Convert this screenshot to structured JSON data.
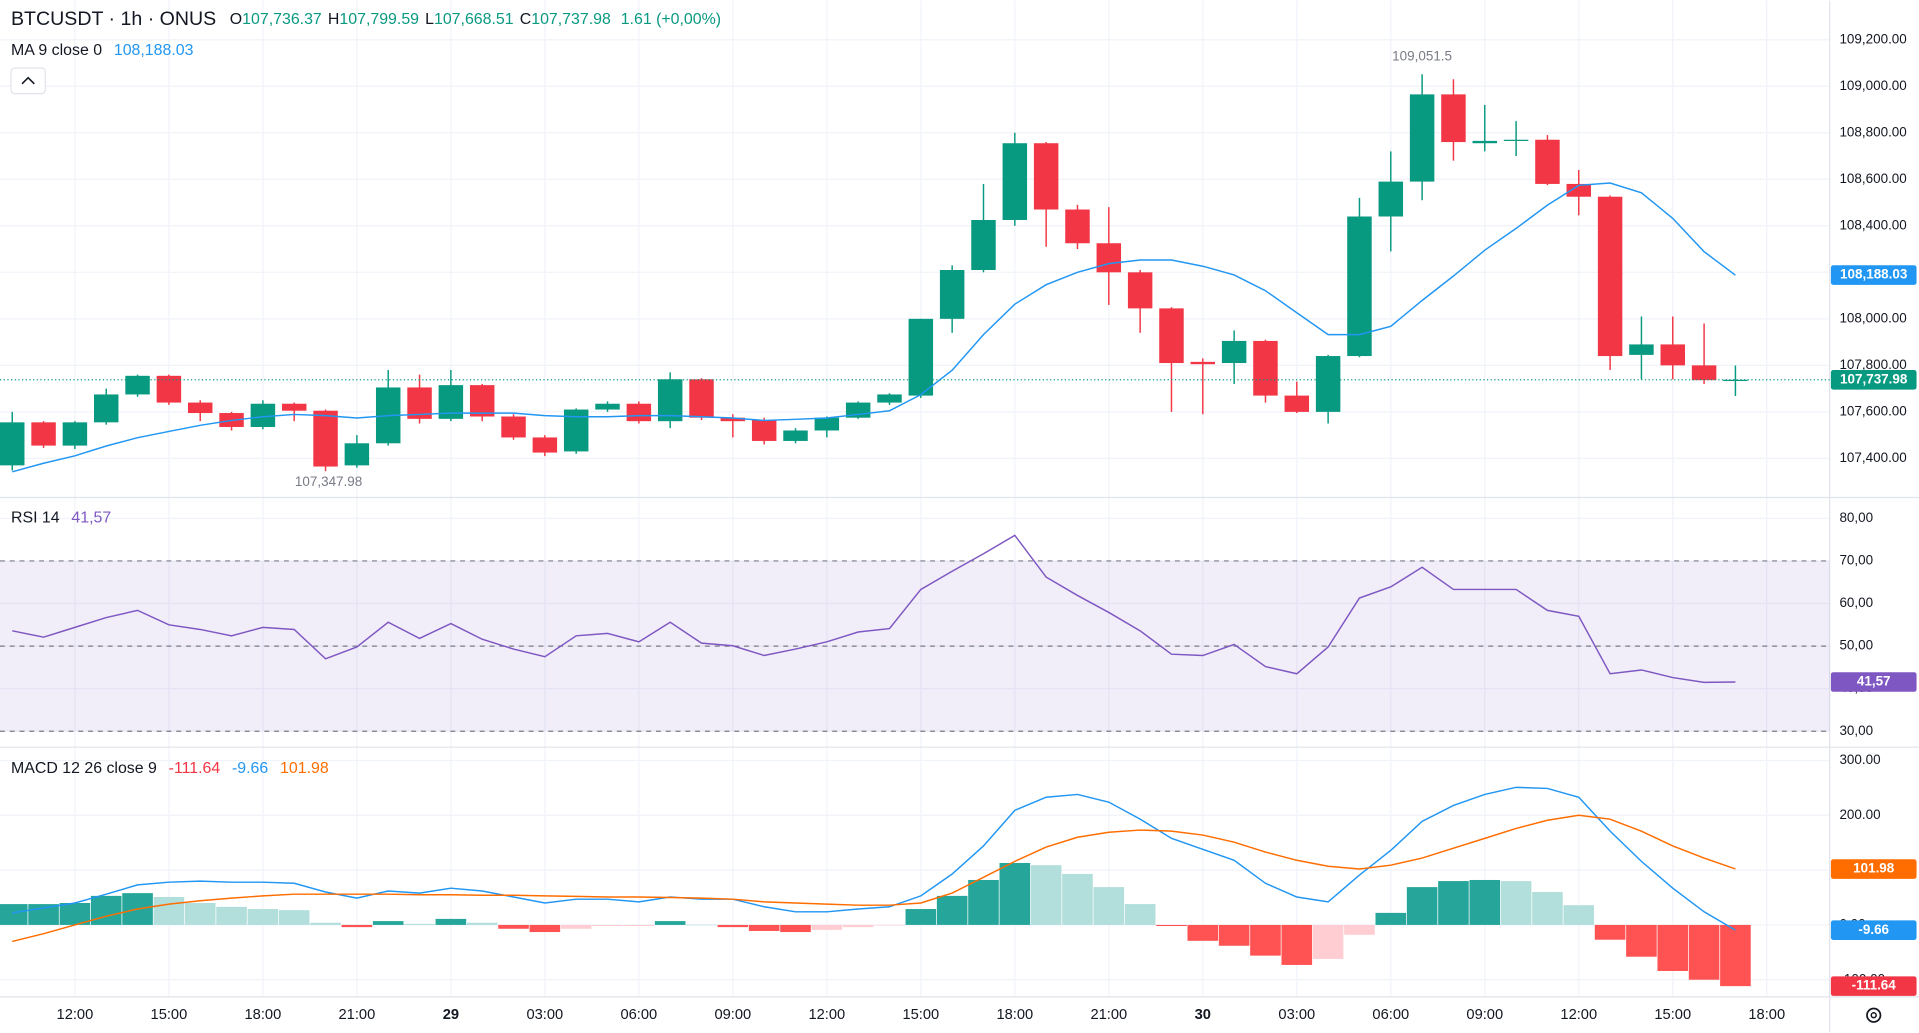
{
  "chart_data": [
    {
      "type": "candlestick",
      "title": "BTCUSDT · 1h · ONUS",
      "header_values": [
        {
          "key": "O",
          "label": "107,736.37"
        },
        {
          "key": "H",
          "label": "107,799.59"
        },
        {
          "key": "L",
          "label": "107,668.51"
        },
        {
          "key": "C",
          "label": "107,737.98"
        }
      ],
      "change_label": "1.61 (+0,00%)",
      "categories": [
        null,
        null,
        "12:00",
        null,
        null,
        "15:00",
        null,
        null,
        "18:00",
        null,
        null,
        "21:00",
        null,
        null,
        "29",
        null,
        null,
        "03:00",
        null,
        null,
        "06:00",
        null,
        null,
        "09:00",
        null,
        null,
        "12:00",
        null,
        null,
        "15:00",
        null,
        null,
        "18:00",
        null,
        null,
        "21:00",
        null,
        null,
        "30",
        null,
        null,
        "03:00",
        null,
        null,
        "06:00",
        null,
        null,
        "09:00",
        null,
        null,
        "12:00",
        null,
        null,
        "15:00",
        null,
        null,
        "18:00"
      ],
      "open": [
        107370,
        107555,
        107455,
        107555,
        107675,
        107755,
        107640,
        107595,
        107535,
        107635,
        107605,
        107370,
        107465,
        107705,
        107570,
        107715,
        107580,
        107490,
        107430,
        107610,
        107635,
        107560,
        107740,
        107575,
        107565,
        107475,
        107520,
        107575,
        107640,
        107670,
        108000,
        108210,
        108425,
        108755,
        108470,
        108325,
        108200,
        108045,
        107815,
        107810,
        107905,
        107670,
        107600,
        107840,
        108440,
        108590,
        108965,
        108755,
        108765,
        108770,
        108580,
        108525,
        107845,
        107890,
        107800,
        107736.37,
        null
      ],
      "high": [
        107600,
        107560,
        107560,
        107700,
        107760,
        107760,
        107650,
        107600,
        107650,
        107640,
        107610,
        107500,
        107780,
        107760,
        107780,
        107720,
        107590,
        107500,
        107615,
        107645,
        107645,
        107770,
        107745,
        107590,
        107575,
        107530,
        107580,
        107645,
        107680,
        108000,
        108230,
        108580,
        108800,
        108760,
        108490,
        108480,
        108210,
        108050,
        107830,
        107950,
        107910,
        107730,
        107845,
        108520,
        108720,
        109051.5,
        109030,
        108920,
        108850,
        108790,
        108640,
        108530,
        108010,
        108010,
        107980,
        107799.59,
        null
      ],
      "low": [
        107347.98,
        107445,
        107440,
        107545,
        107665,
        107630,
        107560,
        107520,
        107525,
        107560,
        107345,
        107360,
        107455,
        107550,
        107560,
        107560,
        107480,
        107410,
        107420,
        107600,
        107550,
        107530,
        107565,
        107490,
        107460,
        107465,
        107490,
        107570,
        107630,
        107660,
        107940,
        108200,
        108400,
        108310,
        108300,
        108060,
        107940,
        107600,
        107590,
        107720,
        107640,
        107595,
        107550,
        107835,
        108290,
        108510,
        108680,
        108720,
        108700,
        108575,
        108445,
        107780,
        107740,
        107740,
        107720,
        107668.51,
        null
      ],
      "close": [
        107555,
        107455,
        107555,
        107675,
        107755,
        107640,
        107595,
        107535,
        107635,
        107605,
        107365,
        107465,
        107705,
        107570,
        107715,
        107580,
        107490,
        107425,
        107610,
        107635,
        107560,
        107740,
        107575,
        107560,
        107475,
        107520,
        107575,
        107640,
        107675,
        108000,
        108210,
        108425,
        108755,
        108470,
        108325,
        108200,
        108045,
        107810,
        107805,
        107905,
        107670,
        107600,
        107840,
        108440,
        108590,
        108965,
        108760,
        108765,
        108770,
        108580,
        108525,
        107840,
        107890,
        107800,
        107736.37,
        107737.98,
        null
      ],
      "close_label": "107,737.98",
      "up_color": "#089981",
      "down_color": "#f23645",
      "high_label": "109,051.5",
      "low_label": "107,347.98",
      "ma": {
        "name": "MA 9 close 0",
        "color": "#2196f3",
        "last_value_label": "108,188.03",
        "values": [
          107342,
          107379,
          107411,
          107453,
          107489,
          107516,
          107542,
          107563,
          107579,
          107589,
          107584,
          107574,
          107584,
          107589,
          107595,
          107595,
          107595,
          107584,
          107579,
          107579,
          107584,
          107584,
          107579,
          107574,
          107563,
          107568,
          107574,
          107589,
          107605,
          107674,
          107779,
          107932,
          108063,
          108147,
          108200,
          108237,
          108253,
          108253,
          108226,
          108189,
          108121,
          108026,
          107932,
          107932,
          107968,
          108079,
          108184,
          108295,
          108389,
          108489,
          108574,
          108584,
          108542,
          108432,
          108289,
          108188.03,
          null
        ]
      },
      "ylim": [
        107237,
        109368
      ],
      "yticks": [
        {
          "value": 107400,
          "label": "107,400.00"
        },
        {
          "value": 107600,
          "label": "107,600.00"
        },
        {
          "value": 107800,
          "label": "107,800.00"
        },
        {
          "value": 108000,
          "label": "108,000.00"
        },
        {
          "value": 108200,
          "label": "108,200.00"
        },
        {
          "value": 108400,
          "label": "108,400.00"
        },
        {
          "value": 108600,
          "label": "108,600.00"
        },
        {
          "value": 108800,
          "label": "108,800.00"
        },
        {
          "value": 109000,
          "label": "109,000.00"
        },
        {
          "value": 109200,
          "label": "109,200.00"
        }
      ],
      "grid": true
    },
    {
      "type": "rsi",
      "title": "RSI 14",
      "color": "#7e57c2",
      "last_value_label": "41,57",
      "values": [
        53.6,
        52.1,
        54.4,
        56.7,
        58.4,
        55,
        53.9,
        52.4,
        54.4,
        53.9,
        47,
        49.8,
        55.6,
        51.8,
        55.3,
        51.6,
        49.3,
        47.5,
        52.4,
        53,
        51,
        55.6,
        50.7,
        50.1,
        47.8,
        49.3,
        51,
        53.3,
        54.1,
        63.3,
        67.6,
        71.7,
        76,
        66.2,
        61.9,
        57.9,
        53.6,
        48.1,
        47.8,
        50.4,
        45.2,
        43.5,
        49.8,
        61.3,
        63.9,
        68.5,
        63.3,
        63.3,
        63.3,
        58.4,
        57,
        43.5,
        44.4,
        42.6,
        41.5,
        41.57,
        null
      ],
      "band": [
        30,
        70
      ],
      "levels": [
        30,
        50,
        70
      ],
      "ylim": [
        26.55,
        84.6
      ],
      "yticks": [
        {
          "value": 30,
          "label": "30,00"
        },
        {
          "value": 40,
          "label": "40,00"
        },
        {
          "value": 50,
          "label": "50,00"
        },
        {
          "value": 60,
          "label": "60,00"
        },
        {
          "value": 70,
          "label": "70,00"
        },
        {
          "value": 80,
          "label": "80,00"
        }
      ],
      "grid": true
    },
    {
      "type": "macd",
      "title": "MACD 12 26 close 9",
      "histogram": {
        "colors": [
          "#26a69a",
          "#b2dfdb",
          "#ff5252",
          "#ffcdd2"
        ],
        "tag_color": "#f23645",
        "last_value_label": "-111.64",
        "values": [
          38,
          38,
          40,
          53,
          58,
          51,
          40,
          33,
          29,
          27,
          4,
          -4,
          7,
          2,
          11,
          4,
          -7,
          -13,
          -7,
          -2,
          -2,
          7,
          0.5,
          -4,
          -11,
          -13,
          -9,
          -4,
          -1,
          29,
          53,
          82,
          113,
          109,
          93,
          69,
          38,
          -2,
          -29,
          -38,
          -56,
          -73,
          -62,
          -18,
          22,
          69,
          80,
          82,
          80,
          60,
          36,
          -27,
          -58,
          -84,
          -100,
          -111.64,
          null
        ]
      },
      "macd": {
        "color": "#2196f3",
        "last_value_label": "-9.66",
        "values": [
          22,
          31,
          40,
          56,
          73,
          78,
          80,
          78,
          78,
          76,
          60,
          49,
          62,
          58,
          67,
          62,
          51,
          40,
          47,
          47,
          42,
          51,
          47,
          47,
          33,
          24,
          24,
          29,
          33,
          53,
          93,
          144,
          209,
          233,
          238,
          224,
          193,
          158,
          138,
          118,
          76,
          51,
          42,
          91,
          136,
          189,
          218,
          238,
          251,
          249,
          233,
          171,
          116,
          67,
          24,
          -9.66,
          null
        ]
      },
      "signal": {
        "color": "#ff6d00",
        "last_value_label": "101.98",
        "values": [
          -30,
          -16,
          0,
          16,
          29,
          38,
          44,
          49,
          53,
          56,
          56,
          56,
          56,
          55,
          55,
          54,
          54,
          53,
          52,
          51,
          51,
          50,
          49,
          47,
          42,
          40,
          38,
          36,
          36,
          40,
          58,
          87,
          116,
          142,
          160,
          169,
          173,
          171,
          164,
          151,
          133,
          118,
          107,
          102,
          109,
          122,
          140,
          158,
          176,
          191,
          200,
          193,
          171,
          144,
          122,
          101.98,
          null
        ]
      },
      "ylim": [
        -129,
        322
      ],
      "yticks": [
        {
          "value": -100,
          "label": "-100.00"
        },
        {
          "value": 0,
          "label": "0.00"
        },
        {
          "value": 100,
          "label": "100.00"
        },
        {
          "value": 200,
          "label": "200.00"
        },
        {
          "value": 300,
          "label": "300.00"
        }
      ],
      "grid": true
    }
  ]
}
